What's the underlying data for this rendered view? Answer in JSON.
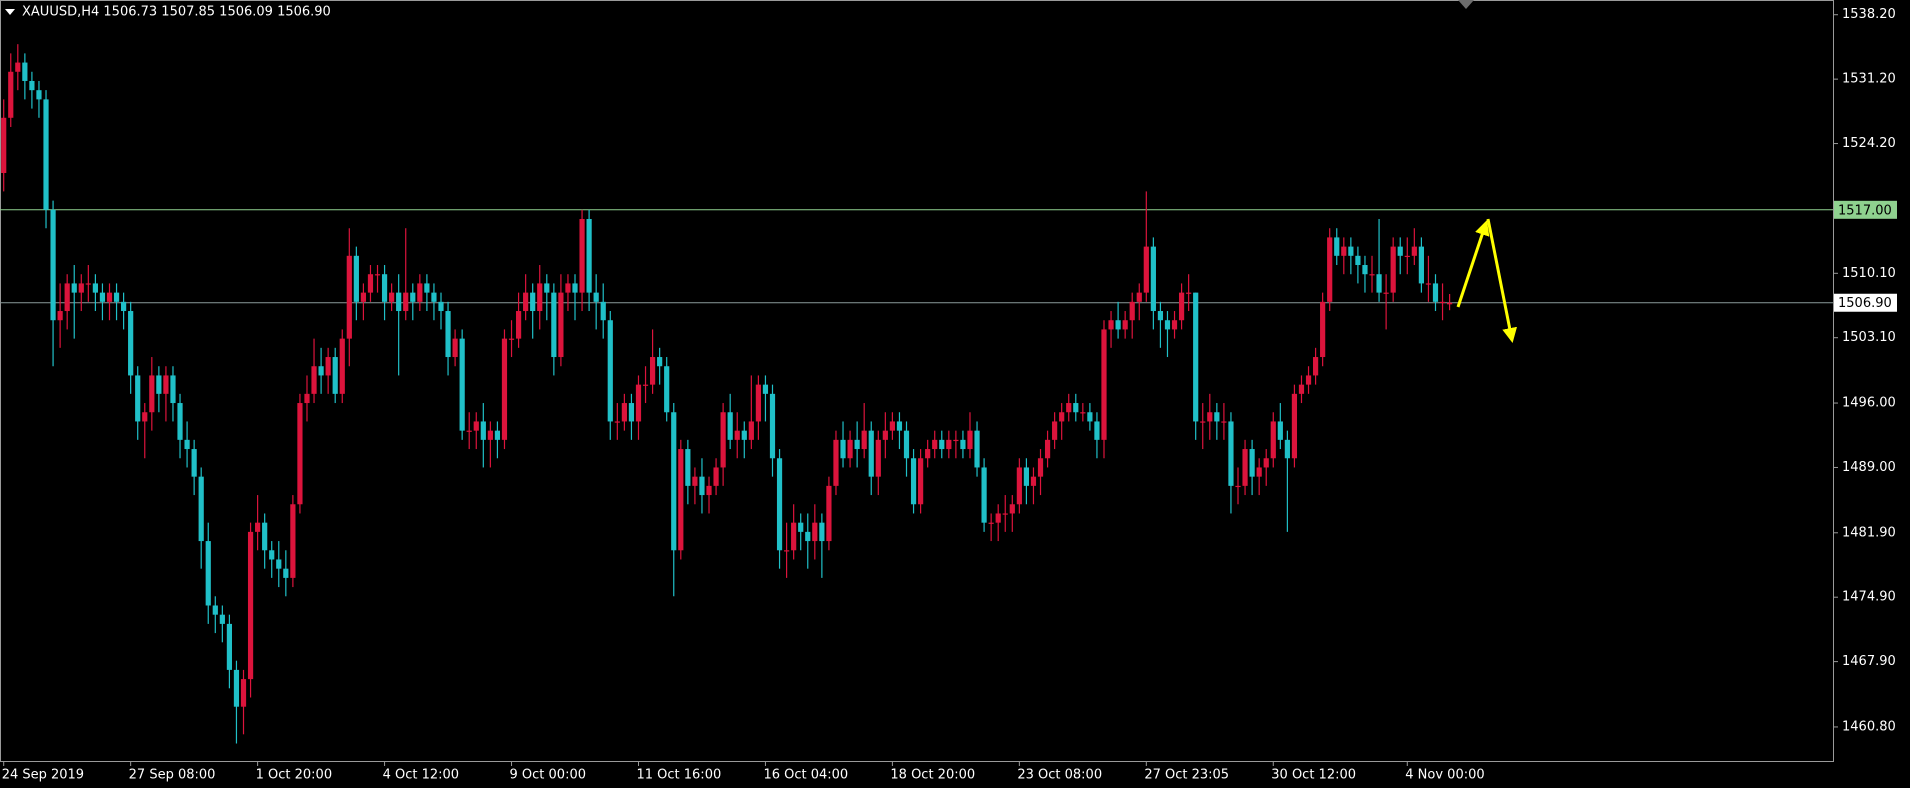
{
  "chart_data": {
    "type": "candlestick",
    "title": "XAUUSD,H4 1506.73 1507.85 1506.09 1506.90",
    "up_color": "#dc143c",
    "down_color": "#20c0c8",
    "ylim": [
      1457.1,
      1539.8
    ],
    "yticks": [
      {
        "value": 1538.2,
        "label": "1538.20"
      },
      {
        "value": 1531.2,
        "label": "1531.20"
      },
      {
        "value": 1524.2,
        "label": "1524.20"
      },
      {
        "value": 1510.1,
        "label": "1510.10"
      },
      {
        "value": 1503.1,
        "label": "1503.10"
      },
      {
        "value": 1496.0,
        "label": "1496.00"
      },
      {
        "value": 1489.0,
        "label": "1489.00"
      },
      {
        "value": 1481.9,
        "label": "1481.90"
      },
      {
        "value": 1474.9,
        "label": "1474.90"
      },
      {
        "value": 1467.9,
        "label": "1467.90"
      },
      {
        "value": 1460.8,
        "label": "1460.80"
      }
    ],
    "levels": [
      {
        "value": 1517.0,
        "label": "1517.00",
        "color": "#8fd18f"
      },
      {
        "value": 1506.9,
        "label": "1506.90",
        "color": "#8a9a9a"
      }
    ],
    "categories": [
      "24 Sep 2019",
      null,
      null,
      null,
      null,
      null,
      null,
      null,
      null,
      null,
      null,
      null,
      null,
      null,
      null,
      null,
      null,
      null,
      "27 Sep 08:00",
      null,
      null,
      null,
      null,
      null,
      null,
      null,
      null,
      null,
      null,
      null,
      null,
      null,
      null,
      null,
      null,
      null,
      "1 Oct 20:00",
      null,
      null,
      null,
      null,
      null,
      null,
      null,
      null,
      null,
      null,
      null,
      null,
      null,
      null,
      null,
      null,
      null,
      "4 Oct 12:00",
      null,
      null,
      null,
      null,
      null,
      null,
      null,
      null,
      null,
      null,
      null,
      null,
      null,
      null,
      null,
      null,
      null,
      "9 Oct 00:00",
      null,
      null,
      null,
      null,
      null,
      null,
      null,
      null,
      null,
      null,
      null,
      null,
      null,
      null,
      null,
      null,
      null,
      "11 Oct 16:00",
      null,
      null,
      null,
      null,
      null,
      null,
      null,
      null,
      null,
      null,
      null,
      null,
      null,
      null,
      null,
      null,
      null,
      "16 Oct 04:00",
      null,
      null,
      null,
      null,
      null,
      null,
      null,
      null,
      null,
      null,
      null,
      null,
      null,
      null,
      null,
      null,
      null,
      "18 Oct 20:00",
      null,
      null,
      null,
      null,
      null,
      null,
      null,
      null,
      null,
      null,
      null,
      null,
      null,
      null,
      null,
      null,
      null,
      "23 Oct 08:00",
      null,
      null,
      null,
      null,
      null,
      null,
      null,
      null,
      null,
      null,
      null,
      null,
      null,
      null,
      null,
      null,
      null,
      "27 Oct 23:05",
      null,
      null,
      null,
      null,
      null,
      null,
      null,
      null,
      null,
      null,
      null,
      null,
      null,
      null,
      null,
      null,
      null,
      "30 Oct 12:00",
      null,
      null,
      null,
      null,
      null,
      null,
      null,
      null,
      null,
      null,
      null,
      null,
      null,
      null,
      null,
      null,
      null,
      null,
      "4 Nov 00:00",
      null,
      null,
      null,
      null,
      null,
      null
    ],
    "open": [
      1521,
      1527,
      1532,
      1533,
      1531,
      1530,
      1529,
      1517,
      1505,
      1506,
      1509,
      1508,
      1509,
      1509,
      1508,
      1507,
      1508,
      1507,
      1506,
      1499,
      1494,
      1495,
      1499,
      1497,
      1499,
      1496,
      1492,
      1491,
      1488,
      1481,
      1474,
      1473,
      1472,
      1467,
      1463,
      1466,
      1482,
      1483,
      1480,
      1479,
      1478,
      1477,
      1485,
      1496,
      1497,
      1500,
      1499,
      1501,
      1497,
      1503,
      1512,
      1507,
      1508,
      1510,
      1510,
      1507,
      1508,
      1506,
      1508,
      1507,
      1509,
      1508,
      1507,
      1506,
      1501,
      1503,
      1493,
      1493,
      1494,
      1492,
      1493,
      1492,
      1503,
      1503,
      1506,
      1508,
      1506,
      1509,
      1508,
      1501,
      1508,
      1509,
      1508,
      1516,
      1508,
      1507,
      1505,
      1494,
      1494,
      1496,
      1494,
      1498,
      1498,
      1501,
      1500,
      1495,
      1480,
      1491,
      1487,
      1488,
      1486,
      1487,
      1489,
      1495,
      1492,
      1493,
      1492,
      1494,
      1498,
      1497,
      1490,
      1480,
      1480,
      1483,
      1482,
      1481,
      1483,
      1481,
      1487,
      1492,
      1490,
      1492,
      1491,
      1493,
      1488,
      1492,
      1493,
      1494,
      1493,
      1490,
      1485,
      1490,
      1491,
      1492,
      1491,
      1492,
      1492,
      1491,
      1493,
      1489,
      1483,
      1483,
      1484,
      1484,
      1485,
      1489,
      1487,
      1488,
      1490,
      1492,
      1494,
      1495,
      1496,
      1495,
      1495,
      1494,
      1492,
      1504,
      1505,
      1504,
      1505,
      1507,
      1508,
      1513,
      1506,
      1505,
      1504,
      1505,
      1508,
      1508,
      1494,
      1494,
      1495,
      1494,
      1494,
      1487,
      1487,
      1491,
      1488,
      1489,
      1490,
      1494,
      1492,
      1490,
      1497,
      1498,
      1499,
      1501,
      1507,
      1514,
      1512,
      1513,
      1512,
      1511,
      1510,
      1510,
      1508,
      1508,
      1513,
      1512,
      1512,
      1513,
      1509,
      1509,
      1507,
      1506.73
    ],
    "high": [
      1529,
      1534,
      1535,
      1534,
      1532,
      1531,
      1530,
      1518,
      1509,
      1510,
      1511,
      1510,
      1511,
      1510,
      1509,
      1509,
      1509,
      1508,
      1507,
      1500,
      1496,
      1501,
      1500,
      1500,
      1500,
      1497,
      1494,
      1492,
      1489,
      1483,
      1475,
      1474,
      1473,
      1468,
      1467,
      1483,
      1486,
      1484,
      1481,
      1481,
      1480,
      1486,
      1497,
      1499,
      1503,
      1502,
      1502,
      1502,
      1504,
      1515,
      1513,
      1509,
      1511,
      1511,
      1511,
      1509,
      1510,
      1515,
      1509,
      1510,
      1510,
      1509,
      1508,
      1507,
      1504,
      1504,
      1495,
      1495,
      1496,
      1494,
      1494,
      1504,
      1505,
      1508,
      1510,
      1509,
      1511,
      1510,
      1509,
      1510,
      1510,
      1510,
      1517,
      1517,
      1510,
      1509,
      1506,
      1496,
      1497,
      1497,
      1499,
      1500,
      1504,
      1502,
      1501,
      1496,
      1492,
      1492,
      1489,
      1490,
      1488,
      1490,
      1496,
      1497,
      1495,
      1494,
      1499,
      1499,
      1499,
      1498,
      1491,
      1483,
      1485,
      1484,
      1484,
      1485,
      1484,
      1488,
      1493,
      1494,
      1493,
      1494,
      1496,
      1494,
      1493,
      1495,
      1495,
      1495,
      1494,
      1491,
      1491,
      1492,
      1493,
      1493,
      1493,
      1493,
      1493,
      1495,
      1494,
      1490,
      1484,
      1485,
      1486,
      1486,
      1490,
      1490,
      1489,
      1491,
      1493,
      1495,
      1496,
      1497,
      1497,
      1496,
      1496,
      1495,
      1505,
      1506,
      1507,
      1506,
      1508,
      1509,
      1519,
      1514,
      1507,
      1506,
      1506,
      1509,
      1510,
      1508,
      1496,
      1497,
      1496,
      1496,
      1495,
      1489,
      1492,
      1492,
      1490,
      1491,
      1495,
      1496,
      1493,
      1498,
      1499,
      1500,
      1502,
      1508,
      1515,
      1515,
      1514,
      1514,
      1513,
      1512,
      1512,
      1516,
      1510,
      1514,
      1514,
      1514,
      1515,
      1514,
      1512,
      1510,
      1509,
      1507.85
    ],
    "low": [
      1519,
      1526,
      1530,
      1529,
      1528,
      1527,
      1515,
      1500,
      1502,
      1504,
      1503,
      1506,
      1507,
      1506,
      1505,
      1505,
      1505,
      1504,
      1497,
      1492,
      1490,
      1493,
      1495,
      1494,
      1494,
      1490,
      1489,
      1486,
      1478,
      1472,
      1471,
      1470,
      1465,
      1459,
      1460,
      1464,
      1480,
      1478,
      1477,
      1476,
      1475,
      1476,
      1484,
      1494,
      1496,
      1497,
      1497,
      1496,
      1496,
      1500,
      1505,
      1505,
      1507,
      1508,
      1505,
      1506,
      1499,
      1505,
      1505,
      1506,
      1506,
      1505,
      1504,
      1499,
      1500,
      1492,
      1491,
      1491,
      1489,
      1489,
      1490,
      1491,
      1501,
      1502,
      1505,
      1503,
      1504,
      1505,
      1499,
      1500,
      1506,
      1505,
      1506,
      1506,
      1504,
      1503,
      1492,
      1492,
      1493,
      1492,
      1492,
      1496,
      1497,
      1498,
      1494,
      1475,
      1479,
      1485,
      1485,
      1484,
      1484,
      1486,
      1487,
      1491,
      1490,
      1490,
      1491,
      1492,
      1494,
      1488,
      1478,
      1477,
      1479,
      1480,
      1478,
      1479,
      1477,
      1480,
      1486,
      1489,
      1489,
      1489,
      1490,
      1486,
      1486,
      1490,
      1492,
      1491,
      1488,
      1484,
      1484,
      1489,
      1490,
      1490,
      1490,
      1490,
      1490,
      1490,
      1488,
      1482,
      1481,
      1481,
      1482,
      1482,
      1484,
      1485,
      1485,
      1486,
      1489,
      1491,
      1492,
      1494,
      1494,
      1494,
      1493,
      1490,
      1490,
      1502,
      1503,
      1503,
      1503,
      1505,
      1507,
      1504,
      1502,
      1501,
      1503,
      1504,
      1506,
      1492,
      1491,
      1492,
      1492,
      1492,
      1484,
      1485,
      1486,
      1486,
      1486,
      1487,
      1489,
      1491,
      1482,
      1489,
      1496,
      1497,
      1498,
      1500,
      1506,
      1511,
      1510,
      1510,
      1509,
      1508,
      1508,
      1507,
      1504,
      1507,
      1510,
      1510,
      1511,
      1508,
      1507,
      1506,
      1505,
      1506.09
    ],
    "close": [
      1527,
      1532,
      1533,
      1531,
      1530,
      1529,
      1517,
      1505,
      1506,
      1509,
      1508,
      1509,
      1509,
      1508,
      1507,
      1508,
      1507,
      1506,
      1499,
      1494,
      1495,
      1499,
      1497,
      1499,
      1496,
      1492,
      1491,
      1488,
      1481,
      1474,
      1473,
      1472,
      1467,
      1463,
      1466,
      1482,
      1483,
      1480,
      1479,
      1478,
      1477,
      1485,
      1496,
      1497,
      1500,
      1499,
      1501,
      1497,
      1503,
      1512,
      1507,
      1508,
      1510,
      1510,
      1507,
      1508,
      1506,
      1508,
      1507,
      1509,
      1508,
      1507,
      1506,
      1501,
      1503,
      1493,
      1493,
      1494,
      1492,
      1493,
      1492,
      1503,
      1503,
      1506,
      1508,
      1506,
      1509,
      1508,
      1501,
      1508,
      1509,
      1508,
      1516,
      1508,
      1507,
      1505,
      1494,
      1494,
      1496,
      1494,
      1498,
      1498,
      1501,
      1500,
      1495,
      1480,
      1491,
      1487,
      1488,
      1486,
      1487,
      1489,
      1495,
      1492,
      1493,
      1492,
      1494,
      1498,
      1497,
      1490,
      1480,
      1480,
      1483,
      1482,
      1481,
      1483,
      1481,
      1487,
      1492,
      1490,
      1492,
      1491,
      1493,
      1488,
      1492,
      1493,
      1494,
      1493,
      1490,
      1485,
      1490,
      1491,
      1492,
      1491,
      1492,
      1492,
      1491,
      1493,
      1489,
      1483,
      1483,
      1484,
      1484,
      1485,
      1489,
      1487,
      1488,
      1490,
      1492,
      1494,
      1495,
      1496,
      1495,
      1495,
      1494,
      1492,
      1504,
      1505,
      1504,
      1505,
      1507,
      1508,
      1513,
      1506,
      1505,
      1504,
      1505,
      1508,
      1508,
      1494,
      1494,
      1495,
      1494,
      1494,
      1487,
      1487,
      1491,
      1488,
      1489,
      1490,
      1494,
      1492,
      1490,
      1497,
      1498,
      1499,
      1501,
      1507,
      1514,
      1512,
      1513,
      1512,
      1511,
      1510,
      1510,
      1508,
      1508,
      1513,
      1512,
      1512,
      1513,
      1509,
      1509,
      1507,
      1507,
      1506.9
    ]
  }
}
